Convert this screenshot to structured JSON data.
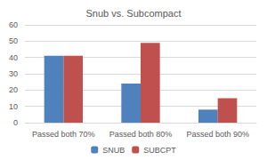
{
  "chart_data": {
    "type": "bar",
    "title": "Snub vs. Subcompact",
    "categories": [
      "Passed both 70%",
      "Passed both 80%",
      "Passed both 90%"
    ],
    "series": [
      {
        "name": "SNUB",
        "color": "#4f81bd",
        "values": [
          41,
          24,
          8
        ]
      },
      {
        "name": "SUBCPT",
        "color": "#c0504d",
        "values": [
          41,
          49,
          15
        ]
      }
    ],
    "ylim": [
      0,
      60
    ],
    "yticks": [
      0,
      10,
      20,
      30,
      40,
      50,
      60
    ],
    "grid": true,
    "legend": "bottom"
  }
}
